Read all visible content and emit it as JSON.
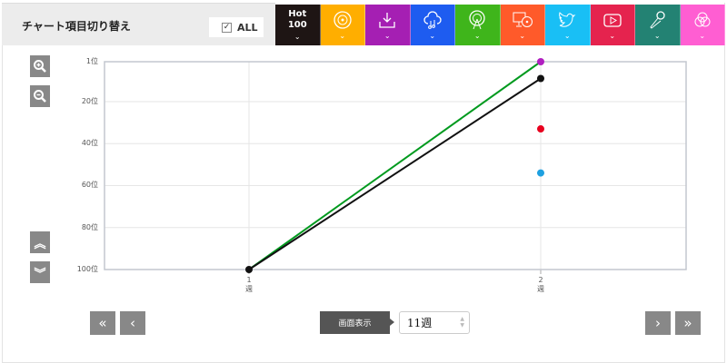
{
  "header": {
    "title": "チャート項目切り替え",
    "all_label": "ALL",
    "all_checked": true,
    "categories": [
      {
        "name": "hot100",
        "label_line1": "Hot",
        "label_line2": "100",
        "color": "#1e1514",
        "icon": "text"
      },
      {
        "name": "cd-sales",
        "color": "#ffae00",
        "icon": "disc-icon"
      },
      {
        "name": "download",
        "color": "#a51fb3",
        "icon": "download-icon"
      },
      {
        "name": "streaming",
        "color": "#1e5cf0",
        "icon": "cloud-music-icon"
      },
      {
        "name": "radio",
        "color": "#3fb51b",
        "icon": "broadcast-icon"
      },
      {
        "name": "pc-lookup",
        "color": "#ff5a2a",
        "icon": "monitor-disc-icon"
      },
      {
        "name": "twitter",
        "color": "#19bff5",
        "icon": "twitter-bird-icon"
      },
      {
        "name": "video",
        "color": "#e5234e",
        "icon": "play-icon"
      },
      {
        "name": "karaoke",
        "color": "#238273",
        "icon": "microphone-icon"
      },
      {
        "name": "overlap",
        "color": "#ff5ed2",
        "icon": "venn-icon"
      }
    ]
  },
  "controls": {
    "zoom_in": "zoom-in-icon",
    "zoom_out": "zoom-out-icon",
    "scroll_up": "double-chevron-up-icon",
    "scroll_down": "double-chevron-down-icon"
  },
  "footer": {
    "first": "«",
    "prev": "‹",
    "next": "›",
    "last": "»",
    "display_label": "画面表示",
    "weeks_value": "11週"
  },
  "chart_data": {
    "type": "line",
    "x": [
      "1週",
      "2週"
    ],
    "x_ticks": [
      {
        "n": "1",
        "u": "週"
      },
      {
        "n": "2",
        "u": "週"
      }
    ],
    "y_ticks": [
      "1位",
      "20位",
      "40位",
      "60位",
      "80位",
      "100位"
    ],
    "y_tick_values": [
      1,
      20,
      40,
      60,
      80,
      100
    ],
    "ylim": [
      1,
      100
    ],
    "y_inverted": true,
    "grid": true,
    "series": [
      {
        "color": "#009a1e",
        "values": [
          100,
          1
        ]
      },
      {
        "color": "#111111",
        "values": [
          100,
          9
        ]
      },
      {
        "color": "#b01fc0",
        "values": [
          null,
          1
        ]
      },
      {
        "color": "#e8001e",
        "values": [
          null,
          33
        ]
      },
      {
        "color": "#1ea0e0",
        "values": [
          null,
          54
        ]
      }
    ]
  }
}
